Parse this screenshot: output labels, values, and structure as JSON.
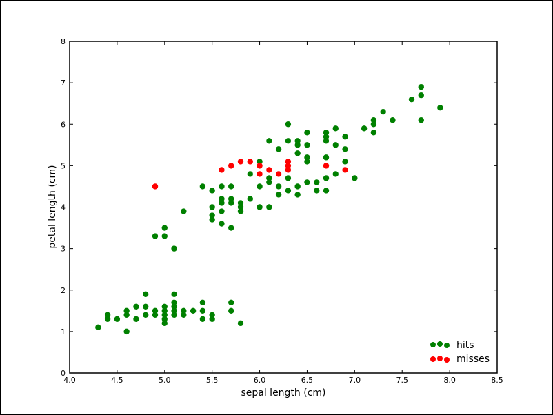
{
  "chart_data": {
    "type": "scatter",
    "title": "",
    "xlabel": "sepal length (cm)",
    "ylabel": "petal length (cm)",
    "xlim": [
      4.0,
      8.5
    ],
    "ylim": [
      0,
      8
    ],
    "xticks": [
      "4.0",
      "4.5",
      "5.0",
      "5.5",
      "6.0",
      "6.5",
      "7.0",
      "7.5",
      "8.0",
      "8.5"
    ],
    "yticks": [
      "0",
      "1",
      "2",
      "3",
      "4",
      "5",
      "6",
      "7",
      "8"
    ],
    "grid": false,
    "legend_position": "lower right",
    "series": [
      {
        "name": "hits",
        "color": "#008000",
        "points": [
          [
            4.3,
            1.1
          ],
          [
            4.4,
            1.3
          ],
          [
            4.4,
            1.4
          ],
          [
            4.5,
            1.3
          ],
          [
            4.6,
            1.0
          ],
          [
            4.6,
            1.4
          ],
          [
            4.6,
            1.5
          ],
          [
            4.7,
            1.3
          ],
          [
            4.7,
            1.6
          ],
          [
            4.8,
            1.4
          ],
          [
            4.8,
            1.6
          ],
          [
            4.8,
            1.9
          ],
          [
            4.9,
            1.4
          ],
          [
            4.9,
            1.5
          ],
          [
            5.0,
            1.2
          ],
          [
            5.0,
            1.3
          ],
          [
            5.0,
            1.4
          ],
          [
            5.0,
            1.5
          ],
          [
            5.0,
            1.6
          ],
          [
            5.1,
            1.4
          ],
          [
            5.1,
            1.5
          ],
          [
            5.1,
            1.6
          ],
          [
            5.1,
            1.7
          ],
          [
            5.1,
            1.9
          ],
          [
            5.2,
            1.4
          ],
          [
            5.2,
            1.5
          ],
          [
            5.3,
            1.5
          ],
          [
            5.4,
            1.3
          ],
          [
            5.4,
            1.5
          ],
          [
            5.4,
            1.7
          ],
          [
            5.5,
            1.3
          ],
          [
            5.5,
            1.4
          ],
          [
            5.7,
            1.5
          ],
          [
            5.7,
            1.7
          ],
          [
            5.8,
            1.2
          ],
          [
            4.9,
            3.3
          ],
          [
            5.0,
            3.3
          ],
          [
            5.0,
            3.5
          ],
          [
            5.1,
            3.0
          ],
          [
            5.2,
            3.9
          ],
          [
            5.4,
            4.5
          ],
          [
            5.5,
            3.7
          ],
          [
            5.5,
            3.8
          ],
          [
            5.5,
            4.0
          ],
          [
            5.5,
            4.4
          ],
          [
            5.6,
            3.6
          ],
          [
            5.6,
            3.9
          ],
          [
            5.6,
            4.1
          ],
          [
            5.6,
            4.2
          ],
          [
            5.6,
            4.5
          ],
          [
            5.7,
            3.5
          ],
          [
            5.7,
            4.1
          ],
          [
            5.7,
            4.2
          ],
          [
            5.7,
            4.5
          ],
          [
            5.8,
            3.9
          ],
          [
            5.8,
            4.0
          ],
          [
            5.8,
            4.1
          ],
          [
            5.9,
            4.2
          ],
          [
            5.9,
            4.8
          ],
          [
            6.0,
            4.0
          ],
          [
            6.0,
            4.5
          ],
          [
            6.0,
            5.1
          ],
          [
            6.1,
            4.0
          ],
          [
            6.1,
            4.6
          ],
          [
            6.1,
            4.7
          ],
          [
            6.1,
            5.6
          ],
          [
            6.2,
            4.3
          ],
          [
            6.2,
            4.5
          ],
          [
            6.2,
            5.4
          ],
          [
            6.3,
            4.4
          ],
          [
            6.3,
            4.7
          ],
          [
            6.3,
            5.6
          ],
          [
            6.3,
            6.0
          ],
          [
            6.4,
            4.3
          ],
          [
            6.4,
            4.5
          ],
          [
            6.4,
            5.3
          ],
          [
            6.4,
            5.5
          ],
          [
            6.4,
            5.6
          ],
          [
            6.5,
            4.6
          ],
          [
            6.5,
            5.1
          ],
          [
            6.5,
            5.2
          ],
          [
            6.5,
            5.5
          ],
          [
            6.5,
            5.8
          ],
          [
            6.6,
            4.4
          ],
          [
            6.6,
            4.6
          ],
          [
            6.7,
            4.4
          ],
          [
            6.7,
            4.7
          ],
          [
            6.7,
            5.2
          ],
          [
            6.7,
            5.6
          ],
          [
            6.7,
            5.7
          ],
          [
            6.7,
            5.8
          ],
          [
            6.8,
            4.8
          ],
          [
            6.8,
            5.5
          ],
          [
            6.8,
            5.9
          ],
          [
            6.9,
            5.1
          ],
          [
            6.9,
            5.4
          ],
          [
            6.9,
            5.7
          ],
          [
            7.0,
            4.7
          ],
          [
            7.1,
            5.9
          ],
          [
            7.2,
            5.8
          ],
          [
            7.2,
            6.0
          ],
          [
            7.2,
            6.1
          ],
          [
            7.3,
            6.3
          ],
          [
            7.4,
            6.1
          ],
          [
            7.6,
            6.6
          ],
          [
            7.7,
            6.1
          ],
          [
            7.7,
            6.7
          ],
          [
            7.7,
            6.9
          ],
          [
            7.9,
            6.4
          ]
        ]
      },
      {
        "name": "misses",
        "color": "#ff0000",
        "points": [
          [
            4.9,
            4.5
          ],
          [
            5.6,
            4.9
          ],
          [
            5.7,
            5.0
          ],
          [
            5.8,
            5.1
          ],
          [
            5.9,
            5.1
          ],
          [
            6.0,
            5.0
          ],
          [
            6.0,
            4.8
          ],
          [
            6.1,
            4.9
          ],
          [
            6.2,
            4.8
          ],
          [
            6.3,
            5.1
          ],
          [
            6.3,
            5.0
          ],
          [
            6.3,
            4.9
          ],
          [
            6.7,
            5.0
          ],
          [
            6.9,
            4.9
          ]
        ]
      }
    ]
  },
  "legend": {
    "items": [
      {
        "label": "hits",
        "color": "#008000"
      },
      {
        "label": "misses",
        "color": "#ff0000"
      }
    ]
  }
}
